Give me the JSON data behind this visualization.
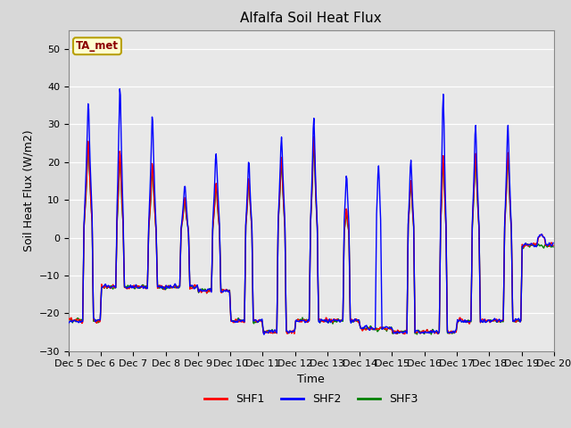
{
  "title": "Alfalfa Soil Heat Flux",
  "ylabel": "Soil Heat Flux (W/m2)",
  "xlabel": "Time",
  "ylim": [
    -30,
    55
  ],
  "yticks": [
    -30,
    -20,
    -10,
    0,
    10,
    20,
    30,
    40,
    50
  ],
  "bg_color": "#e8e8e8",
  "legend_labels": [
    "SHF1",
    "SHF2",
    "SHF3"
  ],
  "legend_colors": [
    "red",
    "blue",
    "green"
  ],
  "annotation_text": "TA_met",
  "annotation_color": "#8B0000",
  "annotation_bg": "#FFFFD0",
  "line_width": 1.0,
  "x_tick_labels": [
    "Dec 5",
    "Dec 6",
    "Dec 7",
    "Dec 8",
    "Dec 9",
    "Dec 10",
    "Dec 11",
    "Dec 12",
    "Dec 13",
    "Dec 14",
    "Dec 15",
    "Dec 16",
    "Dec 17",
    "Dec 18",
    "Dec 19",
    "Dec 20"
  ],
  "title_fontsize": 11,
  "axis_fontsize": 9,
  "tick_fontsize": 8
}
